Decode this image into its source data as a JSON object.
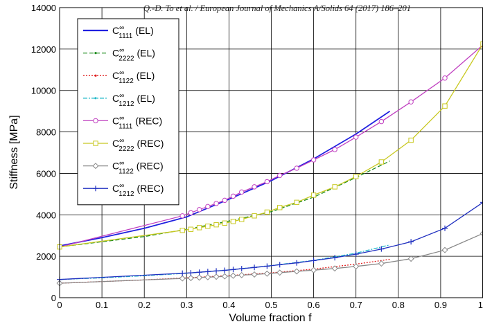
{
  "header_text": "Q.-D. To et al. / European Journal of Mechanics A/Solids 64 (2017) 186–201",
  "chart_data": {
    "type": "line",
    "xlabel": "Volume fraction f",
    "ylabel": "Stiffness [MPa]",
    "xlim": [
      0,
      1
    ],
    "ylim": [
      0,
      14000
    ],
    "xticks": [
      "0",
      "0.1",
      "0.2",
      "0.3",
      "0.4",
      "0.5",
      "0.6",
      "0.7",
      "0.8",
      "0.9",
      "1"
    ],
    "yticks": [
      "0",
      "2000",
      "4000",
      "6000",
      "8000",
      "10000",
      "12000",
      "14000"
    ],
    "grid": true,
    "legend_position": "top-left",
    "series": [
      {
        "base": "C",
        "sup": "∞",
        "sub": "1111",
        "tag": "(EL)",
        "color": "#2020e0",
        "style": "solid",
        "marker": "none",
        "x": [
          0,
          0.1,
          0.2,
          0.3,
          0.4,
          0.5,
          0.6,
          0.7,
          0.78
        ],
        "y": [
          2500,
          2900,
          3350,
          3900,
          4750,
          5650,
          6700,
          7900,
          9000
        ]
      },
      {
        "base": "C",
        "sup": "∞",
        "sub": "2222",
        "tag": "(EL)",
        "color": "#1e8c1e",
        "style": "dashed",
        "marker": "dot",
        "x": [
          0,
          0.1,
          0.2,
          0.3,
          0.4,
          0.5,
          0.6,
          0.7,
          0.78
        ],
        "y": [
          2450,
          2700,
          2950,
          3300,
          3700,
          4150,
          4850,
          5800,
          6600
        ]
      },
      {
        "base": "C",
        "sup": "∞",
        "sub": "1122",
        "tag": "(EL)",
        "color": "#e02020",
        "style": "dotted",
        "marker": "dot",
        "x": [
          0,
          0.1,
          0.2,
          0.3,
          0.4,
          0.5,
          0.6,
          0.7,
          0.78
        ],
        "y": [
          700,
          780,
          860,
          960,
          1070,
          1200,
          1380,
          1620,
          1850
        ]
      },
      {
        "base": "C",
        "sup": "∞",
        "sub": "1212",
        "tag": "(EL)",
        "color": "#20b8c8",
        "style": "dashdot",
        "marker": "dot",
        "x": [
          0,
          0.1,
          0.2,
          0.3,
          0.4,
          0.5,
          0.6,
          0.7,
          0.78
        ],
        "y": [
          880,
          960,
          1060,
          1180,
          1340,
          1550,
          1800,
          2150,
          2550
        ]
      },
      {
        "base": "C",
        "sup": "∞",
        "sub": "1111",
        "tag": "(REC)",
        "color": "#c040c0",
        "style": "solid",
        "marker": "circle",
        "x": [
          0,
          0.29,
          0.31,
          0.33,
          0.35,
          0.37,
          0.39,
          0.41,
          0.43,
          0.46,
          0.49,
          0.52,
          0.56,
          0.6,
          0.65,
          0.7,
          0.76,
          0.83,
          0.91,
          1.0
        ],
        "y": [
          2450,
          3950,
          4100,
          4250,
          4400,
          4550,
          4700,
          4900,
          5100,
          5350,
          5600,
          5900,
          6250,
          6650,
          7150,
          7750,
          8500,
          9450,
          10600,
          12200
        ]
      },
      {
        "base": "C",
        "sup": "∞",
        "sub": "2222",
        "tag": "(REC)",
        "color": "#c8c820",
        "style": "solid",
        "marker": "square",
        "x": [
          0,
          0.29,
          0.31,
          0.33,
          0.35,
          0.37,
          0.39,
          0.41,
          0.43,
          0.46,
          0.49,
          0.52,
          0.56,
          0.6,
          0.65,
          0.7,
          0.76,
          0.83,
          0.91,
          1.0
        ],
        "y": [
          2450,
          3250,
          3300,
          3380,
          3450,
          3520,
          3600,
          3680,
          3780,
          3950,
          4130,
          4350,
          4600,
          4950,
          5350,
          5850,
          6550,
          7600,
          9250,
          12250
        ]
      },
      {
        "base": "C",
        "sup": "∞",
        "sub": "1122",
        "tag": "(REC)",
        "color": "#888888",
        "style": "solid",
        "marker": "diamond",
        "x": [
          0,
          0.29,
          0.31,
          0.33,
          0.35,
          0.37,
          0.39,
          0.41,
          0.43,
          0.46,
          0.49,
          0.52,
          0.56,
          0.6,
          0.65,
          0.7,
          0.76,
          0.83,
          0.91,
          1.0
        ],
        "y": [
          700,
          930,
          950,
          970,
          990,
          1010,
          1030,
          1060,
          1090,
          1120,
          1160,
          1210,
          1270,
          1330,
          1410,
          1510,
          1650,
          1880,
          2300,
          3100
        ]
      },
      {
        "base": "C",
        "sup": "∞",
        "sub": "1212",
        "tag": "(REC)",
        "color": "#2030c0",
        "style": "solid",
        "marker": "plus",
        "x": [
          0,
          0.29,
          0.31,
          0.33,
          0.35,
          0.37,
          0.39,
          0.41,
          0.43,
          0.46,
          0.49,
          0.52,
          0.56,
          0.6,
          0.65,
          0.7,
          0.76,
          0.83,
          0.91,
          1.0
        ],
        "y": [
          880,
          1180,
          1200,
          1230,
          1260,
          1290,
          1320,
          1360,
          1400,
          1460,
          1520,
          1590,
          1680,
          1790,
          1930,
          2100,
          2350,
          2700,
          3350,
          4600
        ]
      }
    ]
  }
}
